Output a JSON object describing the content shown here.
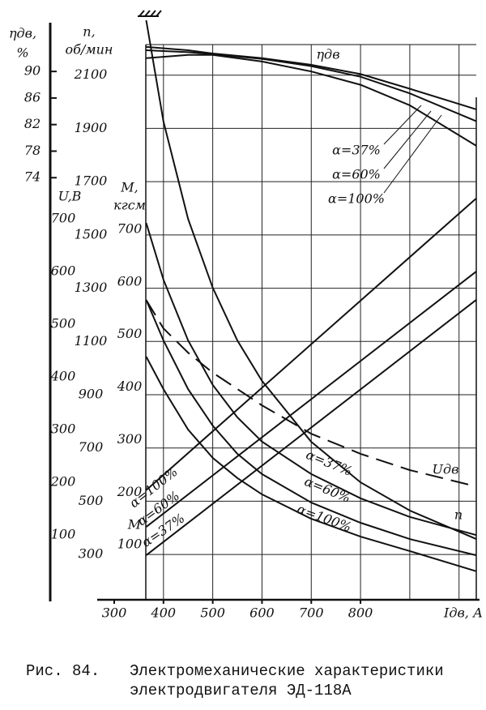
{
  "chart_data": {
    "type": "line",
    "x_label": "Iдв, А",
    "xlim": [
      300,
      1035
    ],
    "xticks": [
      300,
      400,
      500,
      600,
      700,
      800
    ],
    "xgrid": [
      400,
      500,
      600,
      700,
      800,
      900,
      1000
    ],
    "axes": [
      {
        "id": "eta",
        "title": [
          "ηдв,",
          "%"
        ],
        "lim": [
          70,
          94
        ],
        "ticks": [
          90,
          86,
          82,
          78,
          74
        ]
      },
      {
        "id": "n",
        "title": [
          "n,",
          "об/мин"
        ],
        "lim": [
          130,
          2300
        ],
        "ticks": [
          2100,
          1900,
          1700,
          1500,
          1300,
          1100,
          900,
          700,
          500,
          300
        ],
        "grid": true
      },
      {
        "id": "u",
        "title": [
          "U,В"
        ],
        "lim": [
          0,
          700
        ],
        "ticks": [
          700,
          600,
          500,
          400,
          300,
          200,
          100
        ]
      },
      {
        "id": "m",
        "title": [
          "M,",
          "кгсм"
        ],
        "lim": [
          0,
          700
        ],
        "ticks": [
          700,
          600,
          500,
          400,
          300,
          200,
          100
        ]
      }
    ],
    "series": [
      {
        "name": "n",
        "axis": "n",
        "x": [
          365,
          400,
          450,
          500,
          550,
          600,
          700,
          800,
          900,
          1035
        ],
        "values": [
          2306,
          1926,
          1560,
          1302,
          1104,
          952,
          723,
          571,
          465,
          358
        ],
        "color": "#111"
      },
      {
        "name": "α=37%",
        "axis": "n",
        "x": [
          365,
          400,
          450,
          500,
          550,
          600,
          700,
          800,
          900,
          1035
        ],
        "values": [
          1545,
          1332,
          1104,
          937,
          815,
          724,
          602,
          511,
          441,
          373
        ],
        "color": "#111"
      },
      {
        "name": "α=60%",
        "axis": "n",
        "x": [
          365,
          400,
          450,
          500,
          550,
          600,
          700,
          800,
          900,
          1035
        ],
        "values": [
          1256,
          1104,
          921,
          784,
          678,
          602,
          495,
          419,
          358,
          297
        ],
        "color": "#111"
      },
      {
        "name": "α=100%",
        "axis": "n",
        "x": [
          365,
          400,
          450,
          500,
          550,
          600,
          700,
          800,
          900,
          1035
        ],
        "values": [
          1043,
          921,
          769,
          663,
          587,
          526,
          434,
          367,
          313,
          237
        ],
        "color": "#111"
      },
      {
        "name": "α=100%",
        "axis": "m",
        "x": [
          365,
          1035
        ],
        "values": [
          204,
          759
        ],
        "color": "#111"
      },
      {
        "name": "α=60%",
        "axis": "m",
        "x": [
          365,
          1035
        ],
        "values": [
          134,
          620
        ],
        "color": "#111"
      },
      {
        "name": "α=37%",
        "axis": "m",
        "x": [
          365,
          1035
        ],
        "values": [
          80,
          566
        ],
        "color": "#111"
      },
      {
        "name": "Uдв",
        "axis": "u",
        "dashed": true,
        "x": [
          365,
          400,
          450,
          500,
          550,
          600,
          700,
          800,
          900,
          1035
        ],
        "values": [
          546,
          492,
          446,
          408,
          377,
          346,
          292,
          254,
          223,
          192
        ],
        "color": "#111"
      },
      {
        "name": "α=37%",
        "axis": "eta",
        "x": [
          365,
          450,
          500,
          600,
          700,
          800,
          900,
          1035
        ],
        "values": [
          93.7,
          93.2,
          92.7,
          92.0,
          91.0,
          89.6,
          87.4,
          84.3
        ],
        "color": "#111"
      },
      {
        "name": "α=60%",
        "axis": "eta",
        "x": [
          365,
          450,
          500,
          600,
          700,
          800,
          900,
          1035
        ],
        "values": [
          93.2,
          92.9,
          92.6,
          91.9,
          90.8,
          89.2,
          86.7,
          82.5
        ],
        "color": "#111"
      },
      {
        "name": "α=100%",
        "axis": "eta",
        "x": [
          365,
          450,
          500,
          600,
          700,
          800,
          900,
          1035
        ],
        "values": [
          92.0,
          92.5,
          92.5,
          91.5,
          90.0,
          88.0,
          84.9,
          78.8
        ],
        "color": "#111"
      }
    ],
    "annotations": [
      "ηдв",
      "M"
    ],
    "caption": [
      "Рис. 84.",
      "Электромеханические характеристики",
      "электродвигателя ЭД-118А"
    ]
  }
}
